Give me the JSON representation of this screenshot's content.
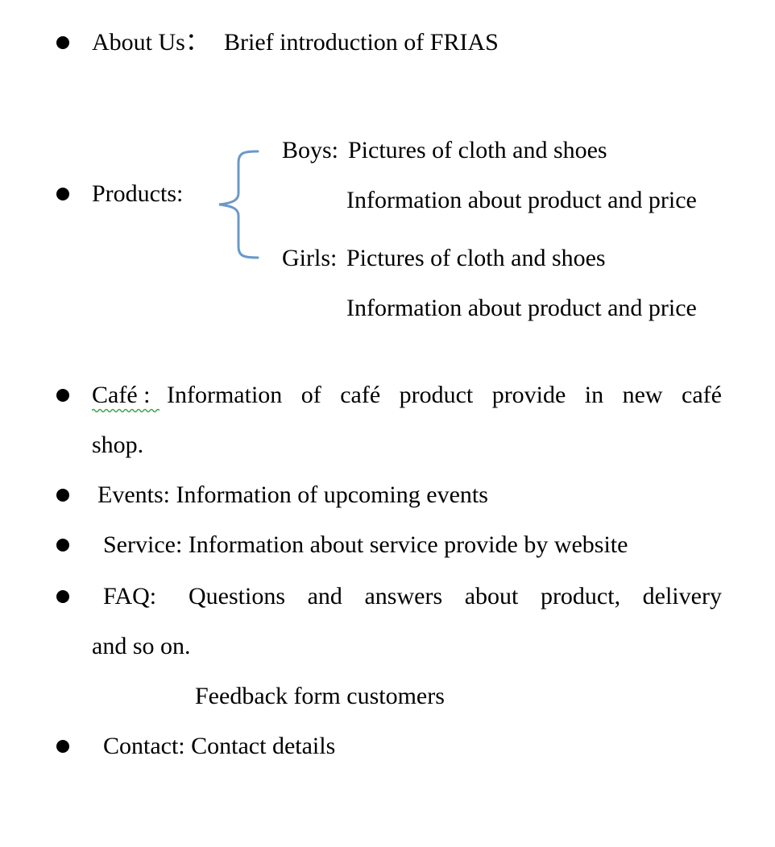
{
  "about": {
    "label": "About Us：",
    "text": "Brief introduction of FRIAS"
  },
  "products": {
    "label": "Products:",
    "boys_label": "Boys:",
    "boys_line1": "Pictures of cloth and shoes",
    "boys_line2": "Information about product and price",
    "girls_label": "Girls:",
    "girls_line1": "Pictures of cloth and shoes",
    "girls_line2": "Information about product and price",
    "brace_color": "#6a99c9"
  },
  "cafe": {
    "label": "Café :",
    "words": [
      "Information",
      "of",
      "café",
      "product",
      "provide",
      "in",
      "new",
      "café"
    ],
    "line2": "shop.",
    "squiggle_color": "#3fa34d"
  },
  "events": {
    "text": "Events: Information of upcoming events"
  },
  "service": {
    "text": "Service: Information about service provide by website"
  },
  "faq": {
    "label": "FAQ:",
    "words": [
      "Questions",
      "and",
      "answers",
      "about",
      "product,",
      "delivery"
    ],
    "line2": "and so on.",
    "line3": "Feedback form customers"
  },
  "contact": {
    "text": "Contact: Contact details"
  }
}
